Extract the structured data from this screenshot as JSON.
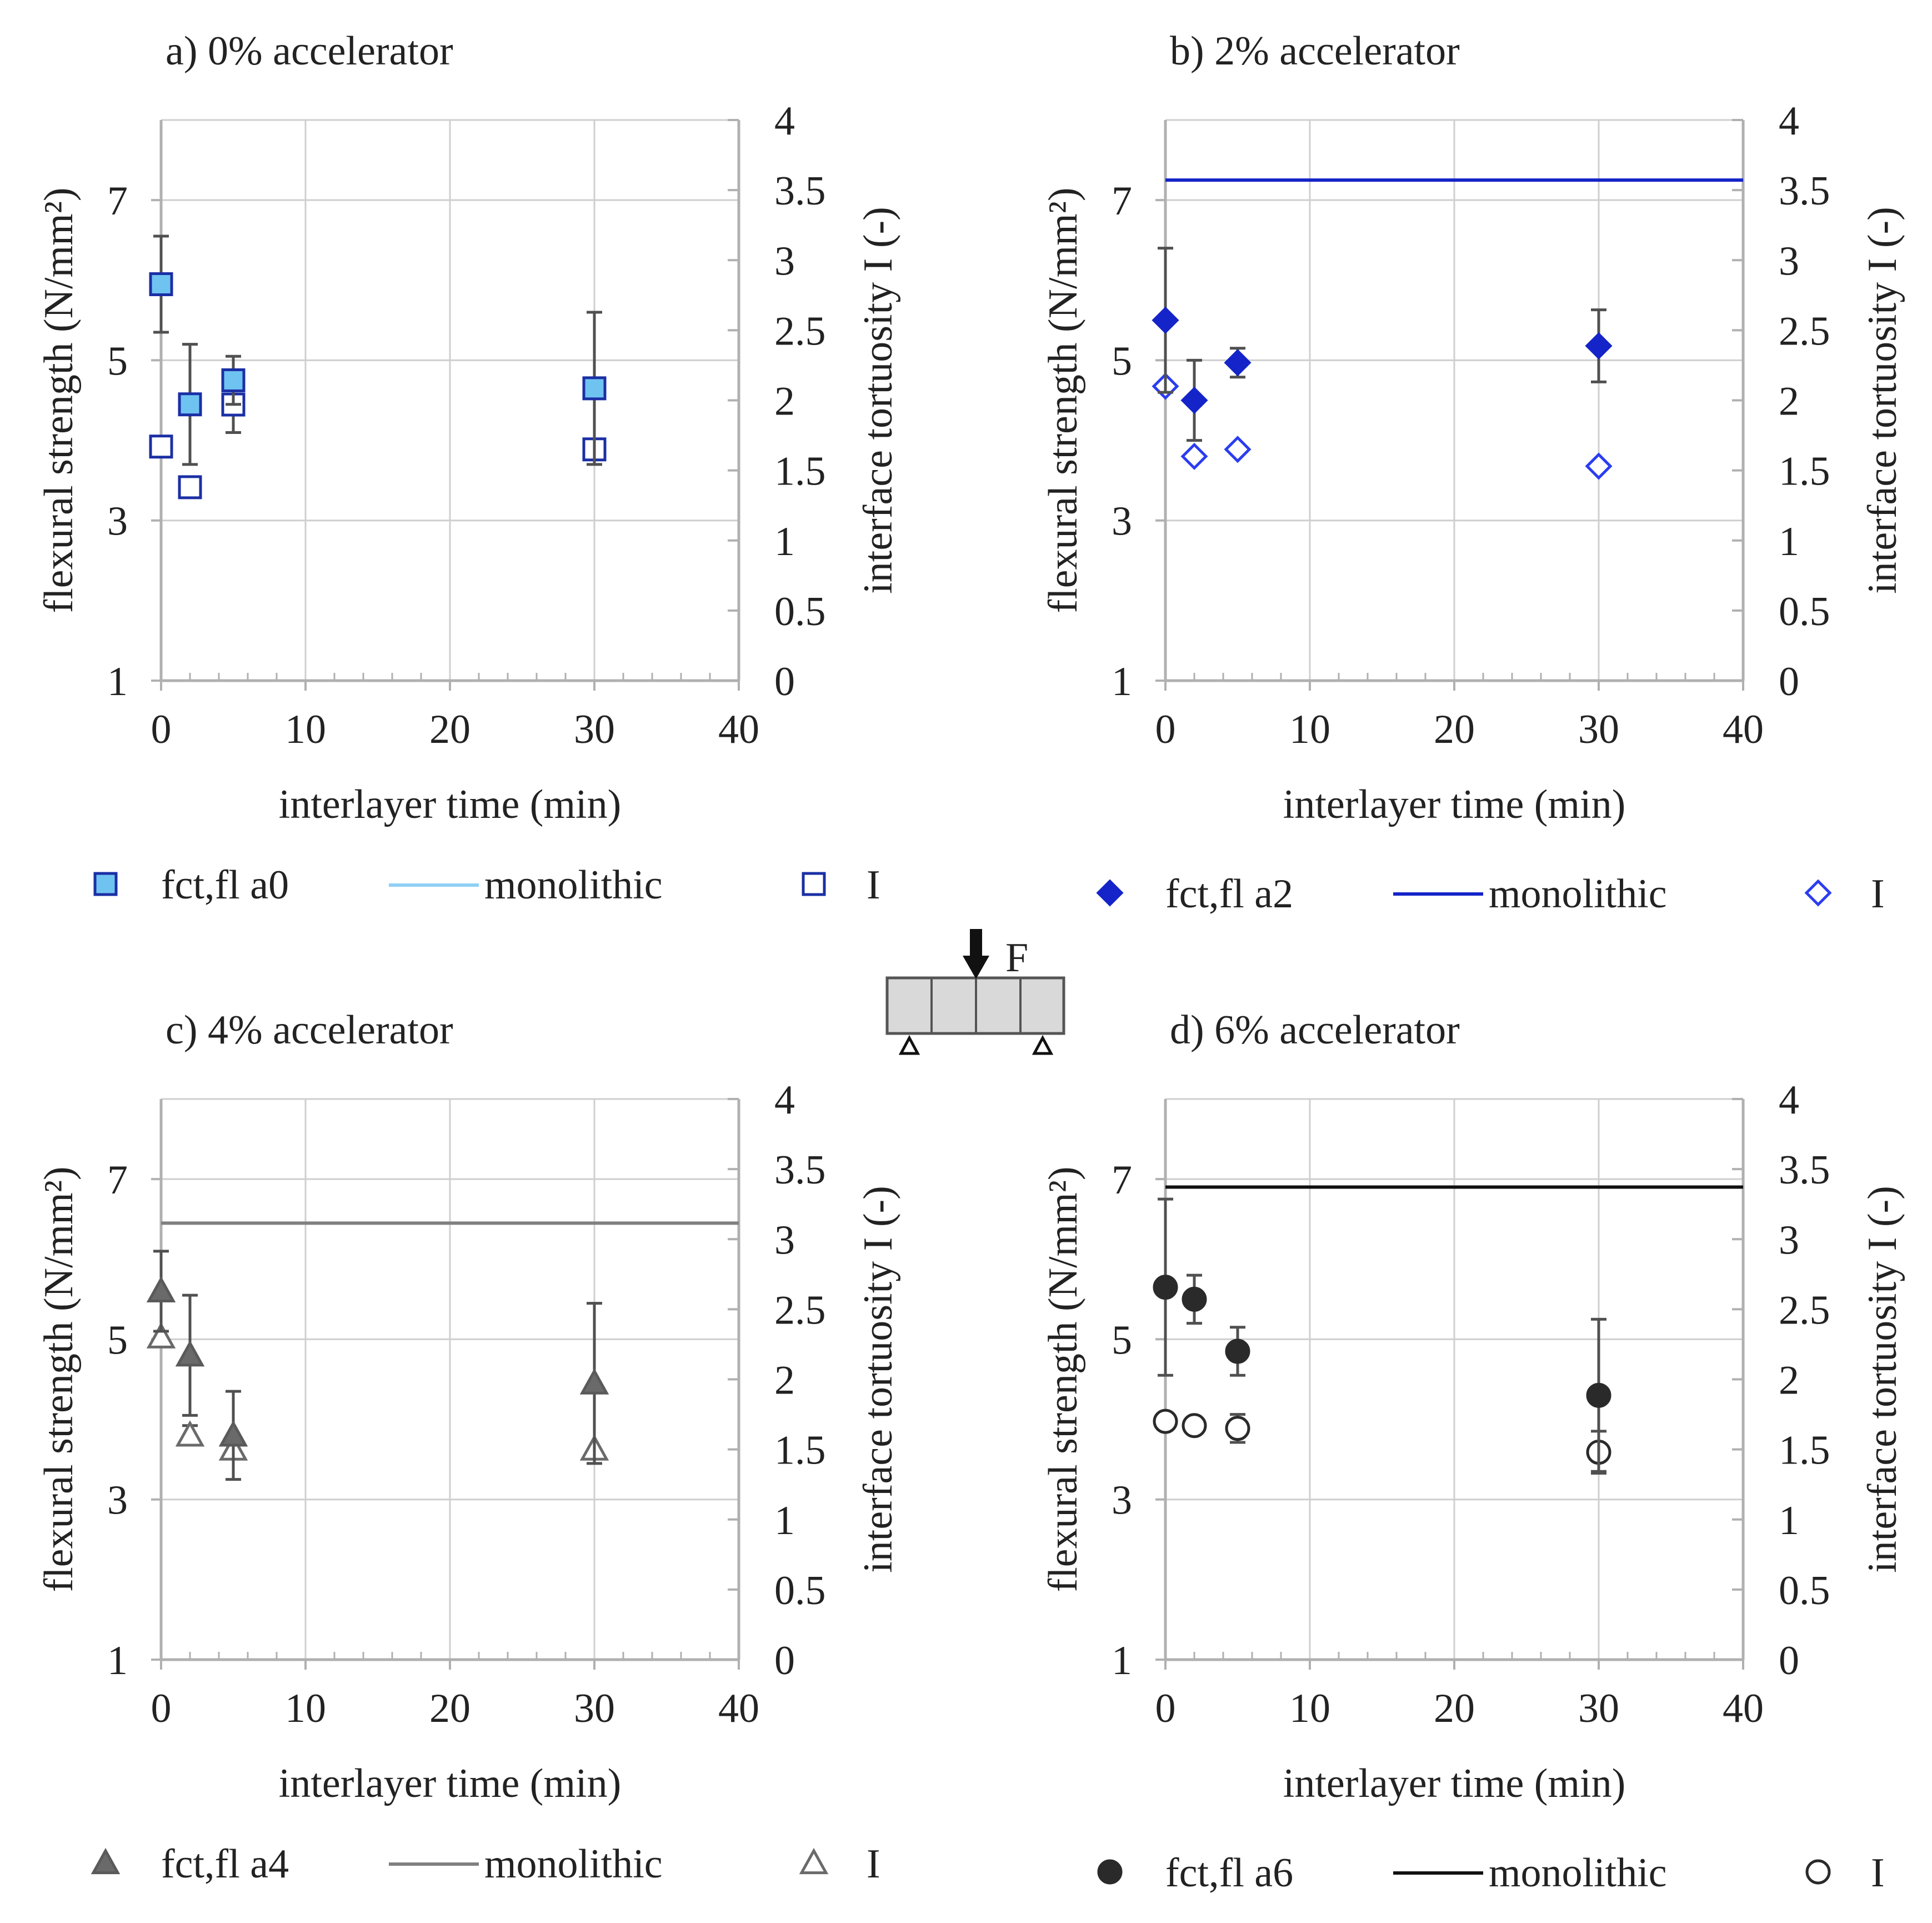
{
  "diagram": {
    "label": "F"
  },
  "chart_data": [
    {
      "type": "scatter",
      "title": "a)  0% accelerator",
      "xlabel": "interlayer time (min)",
      "ylabel": "flexural strength (N/mm²)",
      "y2label": "interface tortuosity I (-)",
      "xlim": [
        0,
        40
      ],
      "ylim": [
        1,
        8
      ],
      "y2lim": [
        0,
        4
      ],
      "xticks": [
        "0",
        "10",
        "20",
        "30",
        "40"
      ],
      "yticks": [
        "1",
        "3",
        "5",
        "7"
      ],
      "y2ticks": [
        "0",
        "0.5",
        "1",
        "1.5",
        "2",
        "2.5",
        "3",
        "3.5",
        "4"
      ],
      "colors": {
        "strength": "#6fc3f0",
        "edge": "#1b2fa5",
        "tortuosity": "#1b2fa5",
        "monolithic": "#8fd0f5",
        "errorbar": "#505050"
      },
      "markers": {
        "strength": "square",
        "tortuosity": "square"
      },
      "monolithic": null,
      "strength": [
        {
          "x": 0,
          "y": 5.95,
          "err": 0.6
        },
        {
          "x": 2,
          "y": 4.45,
          "err": 0.75
        },
        {
          "x": 5,
          "y": 4.75,
          "err": 0.3
        },
        {
          "x": 30,
          "y": 4.65,
          "err": 0.95
        }
      ],
      "tortuosity": [
        {
          "x": 0,
          "y": 1.67,
          "err": 0
        },
        {
          "x": 2,
          "y": 1.38,
          "err": 0
        },
        {
          "x": 5,
          "y": 1.97,
          "err": 0.2
        },
        {
          "x": 30,
          "y": 1.65,
          "err": 0.07
        }
      ],
      "legend": [
        "fct,fl a0",
        "monolithic",
        "I"
      ]
    },
    {
      "type": "scatter",
      "title": "b)  2% accelerator",
      "xlabel": "interlayer time (min)",
      "ylabel": "flexural strength (N/mm²)",
      "y2label": "interface tortuosity I (-)",
      "xlim": [
        0,
        40
      ],
      "ylim": [
        1,
        8
      ],
      "y2lim": [
        0,
        4
      ],
      "xticks": [
        "0",
        "10",
        "20",
        "30",
        "40"
      ],
      "yticks": [
        "1",
        "3",
        "5",
        "7"
      ],
      "y2ticks": [
        "0",
        "0.5",
        "1",
        "1.5",
        "2",
        "2.5",
        "3",
        "3.5",
        "4"
      ],
      "colors": {
        "strength": "#1424c8",
        "edge": "#1424c8",
        "tortuosity": "#2b3df0",
        "monolithic": "#1424c8",
        "errorbar": "#505050"
      },
      "markers": {
        "strength": "diamond",
        "tortuosity": "diamond"
      },
      "monolithic": 7.25,
      "strength": [
        {
          "x": 0,
          "y": 5.5,
          "err": 0.9
        },
        {
          "x": 2,
          "y": 4.5,
          "err": 0.5
        },
        {
          "x": 5,
          "y": 4.97,
          "err": 0.18
        },
        {
          "x": 30,
          "y": 5.18,
          "err": 0.45
        }
      ],
      "tortuosity": [
        {
          "x": 0,
          "y": 2.1,
          "err": 0
        },
        {
          "x": 2,
          "y": 1.6,
          "err": 0
        },
        {
          "x": 5,
          "y": 1.65,
          "err": 0
        },
        {
          "x": 30,
          "y": 1.53,
          "err": 0
        }
      ],
      "legend": [
        "fct,fl a2",
        "monolithic",
        "I"
      ]
    },
    {
      "type": "scatter",
      "title": "c)  4% accelerator",
      "xlabel": "interlayer time (min)",
      "ylabel": "flexural strength (N/mm²)",
      "y2label": "interface tortuosity I (-)",
      "xlim": [
        0,
        40
      ],
      "ylim": [
        1,
        8
      ],
      "y2lim": [
        0,
        4
      ],
      "xticks": [
        "0",
        "10",
        "20",
        "30",
        "40"
      ],
      "yticks": [
        "1",
        "3",
        "5",
        "7"
      ],
      "y2ticks": [
        "0",
        "0.5",
        "1",
        "1.5",
        "2",
        "2.5",
        "3",
        "3.5",
        "4"
      ],
      "colors": {
        "strength": "#6a6a6a",
        "edge": "#5a5a5a",
        "tortuosity": "#6a6a6a",
        "monolithic": "#808080",
        "errorbar": "#505050"
      },
      "markers": {
        "strength": "triangle",
        "tortuosity": "triangle"
      },
      "monolithic": 6.45,
      "strength": [
        {
          "x": 0,
          "y": 5.6,
          "err": 0.5
        },
        {
          "x": 2,
          "y": 4.8,
          "err": 0.75
        },
        {
          "x": 5,
          "y": 3.8,
          "err": 0.55
        },
        {
          "x": 30,
          "y": 4.45,
          "err": 1.0
        }
      ],
      "tortuosity": [
        {
          "x": 0,
          "y": 2.3,
          "err": 0
        },
        {
          "x": 2,
          "y": 1.6,
          "err": 0.07
        },
        {
          "x": 5,
          "y": 1.5,
          "err": 0
        },
        {
          "x": 30,
          "y": 1.5,
          "err": 0
        }
      ],
      "legend": [
        "fct,fl a4",
        "monolithic",
        "I"
      ]
    },
    {
      "type": "scatter",
      "title": "d)  6% accelerator",
      "xlabel": "interlayer time (min)",
      "ylabel": "flexural strength (N/mm²)",
      "y2label": "interface tortuosity I (-)",
      "xlim": [
        0,
        40
      ],
      "ylim": [
        1,
        8
      ],
      "y2lim": [
        0,
        4
      ],
      "xticks": [
        "0",
        "10",
        "20",
        "30",
        "40"
      ],
      "yticks": [
        "1",
        "3",
        "5",
        "7"
      ],
      "y2ticks": [
        "0",
        "0.5",
        "1",
        "1.5",
        "2",
        "2.5",
        "3",
        "3.5",
        "4"
      ],
      "colors": {
        "strength": "#2a2a2a",
        "edge": "#2a2a2a",
        "tortuosity": "#2a2a2a",
        "monolithic": "#111111",
        "errorbar": "#505050"
      },
      "markers": {
        "strength": "circle",
        "tortuosity": "circle"
      },
      "monolithic": 6.9,
      "strength": [
        {
          "x": 0,
          "y": 5.65,
          "err": 1.1
        },
        {
          "x": 2,
          "y": 5.5,
          "err": 0.3
        },
        {
          "x": 5,
          "y": 4.85,
          "err": 0.3
        },
        {
          "x": 30,
          "y": 4.3,
          "err": 0.95
        }
      ],
      "tortuosity": [
        {
          "x": 0,
          "y": 1.7,
          "err": 0
        },
        {
          "x": 2,
          "y": 1.67,
          "err": 0
        },
        {
          "x": 5,
          "y": 1.65,
          "err": 0.1
        },
        {
          "x": 30,
          "y": 1.48,
          "err": 0.15
        }
      ],
      "legend": [
        "fct,fl a6",
        "monolithic",
        "I"
      ]
    }
  ]
}
